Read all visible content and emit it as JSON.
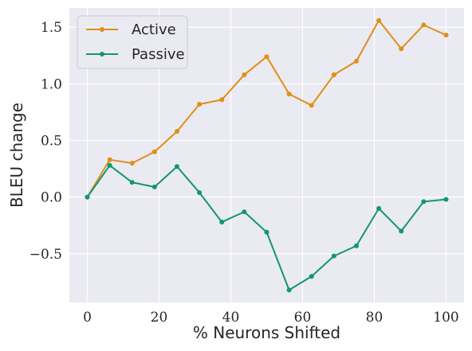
{
  "chart_data": {
    "type": "line",
    "title": "",
    "xlabel": "% Neurons Shifted",
    "ylabel": "BLEU change",
    "xlim": [
      -5,
      105
    ],
    "ylim": [
      -0.93,
      1.67
    ],
    "xticks": [
      0,
      20,
      40,
      60,
      80,
      100
    ],
    "yticks": [
      -0.5,
      0.0,
      0.5,
      1.0,
      1.5
    ],
    "xtick_labels": [
      "0",
      "20",
      "40",
      "60",
      "80",
      "100"
    ],
    "ytick_labels": [
      "−0.5",
      "0.0",
      "0.5",
      "1.0",
      "1.5"
    ],
    "grid": true,
    "legend_position": "top-left",
    "x": [
      0,
      6.25,
      12.5,
      18.75,
      25,
      31.25,
      37.5,
      43.75,
      50,
      56.25,
      62.5,
      68.75,
      75,
      81.25,
      87.5,
      93.75,
      100
    ],
    "series": [
      {
        "name": "Active",
        "color": "#e08f16",
        "values": [
          0.0,
          0.33,
          0.3,
          0.4,
          0.58,
          0.82,
          0.86,
          1.08,
          1.24,
          0.91,
          0.81,
          1.08,
          1.2,
          1.56,
          1.31,
          1.52,
          1.43
        ]
      },
      {
        "name": "Passive",
        "color": "#12966f",
        "values": [
          0.0,
          0.28,
          0.13,
          0.09,
          0.27,
          0.04,
          -0.22,
          -0.13,
          -0.31,
          -0.82,
          -0.7,
          -0.52,
          -0.43,
          -0.1,
          -0.3,
          -0.04,
          -0.02
        ]
      }
    ]
  }
}
